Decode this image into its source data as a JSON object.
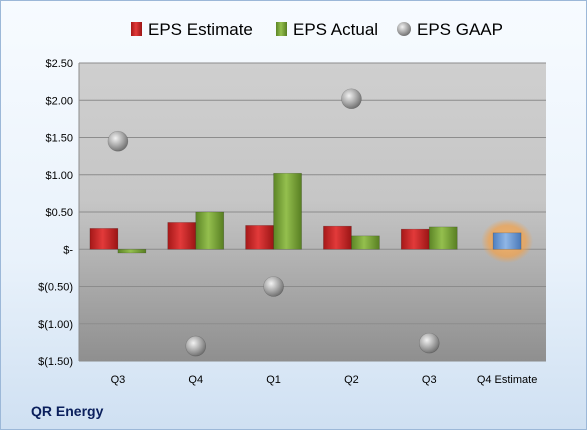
{
  "company": "QR Energy",
  "colors": {
    "estimate": "#d42a2a",
    "actual": "#7ea83c",
    "gaap": "#b4b4b4",
    "future_estimate": "#6f9fd6",
    "future_glow": "#f2a14a"
  },
  "chart_data": {
    "type": "bar",
    "categories": [
      "Q3",
      "Q4",
      "Q1",
      "Q2",
      "Q3",
      "Q4 Estimate"
    ],
    "series": [
      {
        "name": "EPS Estimate",
        "values": [
          0.28,
          0.36,
          0.32,
          0.31,
          0.27,
          null
        ]
      },
      {
        "name": "EPS Actual",
        "values": [
          -0.05,
          0.5,
          1.02,
          0.18,
          0.3,
          null
        ]
      },
      {
        "name": "EPS GAAP",
        "values": [
          1.45,
          -1.3,
          -0.5,
          2.02,
          -1.26,
          null
        ]
      }
    ],
    "future_estimate": {
      "category": "Q4 Estimate",
      "value": 0.22
    },
    "ylim": [
      -1.5,
      2.5
    ],
    "yticks": [
      2.5,
      2.0,
      1.5,
      1.0,
      0.5,
      0,
      -0.5,
      -1.0,
      -1.5
    ],
    "ytick_labels": [
      "$2.50",
      "$2.00",
      "$1.50",
      "$1.00",
      "$0.50",
      "$-",
      "$(0.50)",
      "$(1.00)",
      "$(1.50)"
    ],
    "legend_position": "top",
    "grid": true
  }
}
